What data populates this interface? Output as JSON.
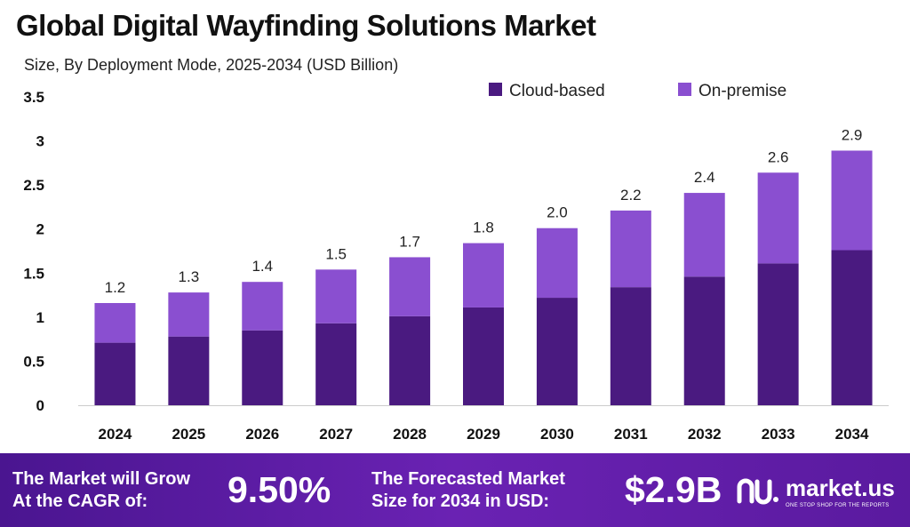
{
  "header": {
    "title": "Global Digital Wayfinding Solutions Market",
    "subtitle": "Size, By Deployment Mode, 2025-2034 (USD Billion)"
  },
  "chart_data": {
    "type": "bar",
    "stacked": true,
    "categories": [
      "2024",
      "2025",
      "2026",
      "2027",
      "2028",
      "2029",
      "2030",
      "2031",
      "2032",
      "2033",
      "2034"
    ],
    "series": [
      {
        "name": "Cloud-based",
        "color": "#4a1a80",
        "values": [
          0.71,
          0.78,
          0.85,
          0.93,
          1.01,
          1.11,
          1.22,
          1.34,
          1.46,
          1.61,
          1.76
        ]
      },
      {
        "name": "On-premise",
        "color": "#8a4fd0",
        "values": [
          0.45,
          0.5,
          0.55,
          0.61,
          0.67,
          0.73,
          0.79,
          0.87,
          0.95,
          1.03,
          1.13
        ]
      }
    ],
    "totals_labels": [
      "1.2",
      "1.3",
      "1.4",
      "1.5",
      "1.7",
      "1.8",
      "2.0",
      "2.2",
      "2.4",
      "2.6",
      "2.9"
    ],
    "yticks": [
      "0",
      "0.5",
      "1",
      "1.5",
      "2",
      "2.5",
      "3",
      "3.5"
    ],
    "ylim": [
      0,
      3.5
    ],
    "grid": false,
    "legend_position": "top-right"
  },
  "footer": {
    "cagr_label_1": "The Market will Grow",
    "cagr_label_2": "At the CAGR of:",
    "cagr_value": "9.50%",
    "forecast_label_1": "The Forecasted Market",
    "forecast_label_2": "Size for 2034 in USD:",
    "forecast_value": "$2.9B",
    "brand_name": "market.us",
    "brand_tagline": "ONE STOP SHOP FOR THE REPORTS"
  }
}
